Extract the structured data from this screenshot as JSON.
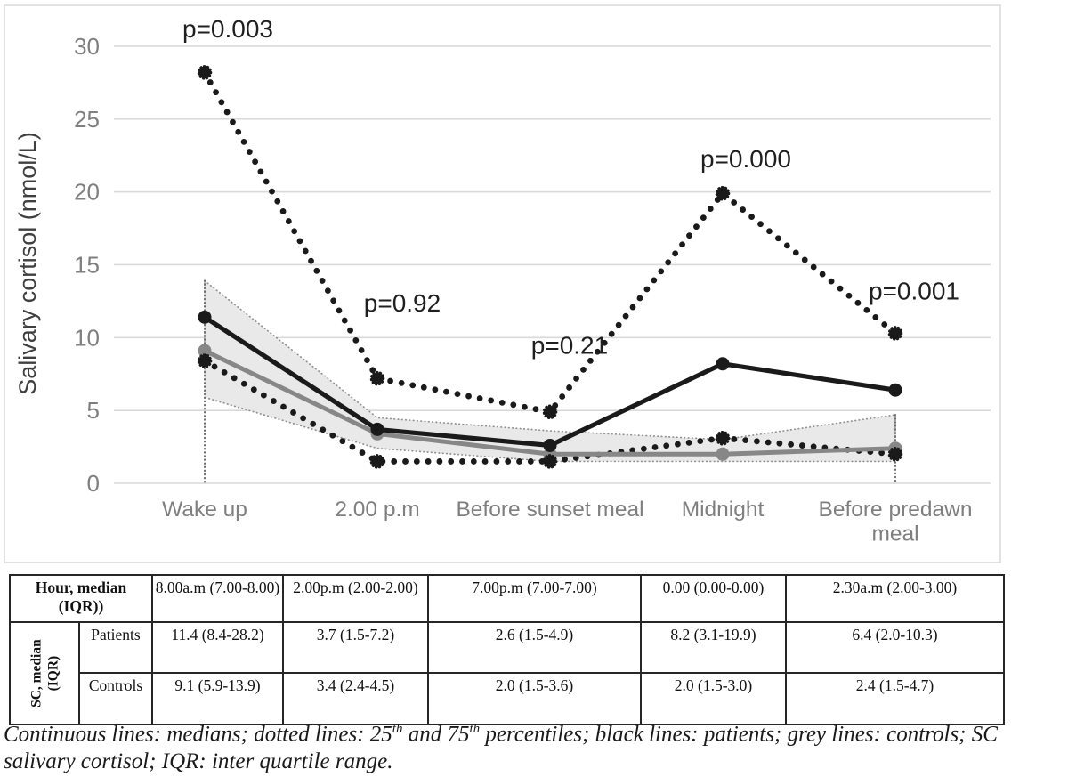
{
  "chart_data": {
    "type": "line",
    "title": "",
    "ylabel": "Salivary cortisol (nmol/L)",
    "xlabel": "",
    "grid": true,
    "legend": "none",
    "ylim": [
      0,
      30
    ],
    "yticks": [
      0,
      5,
      10,
      15,
      20,
      25,
      30
    ],
    "categories": [
      "Wake up",
      "2.00 p.m",
      "Before sunset meal",
      "Midnight",
      "Before predawn meal"
    ],
    "category_label_lines": [
      [
        "Wake up"
      ],
      [
        "2.00 p.m"
      ],
      [
        "Before sunset meal"
      ],
      [
        "Midnight"
      ],
      [
        "Before predawn",
        "meal"
      ]
    ],
    "series": [
      {
        "name": "Patients median",
        "style": "solid",
        "color": "black",
        "values": [
          11.4,
          3.7,
          2.6,
          8.2,
          6.4
        ]
      },
      {
        "name": "Patients 25th percentile",
        "style": "dotted",
        "color": "black",
        "values": [
          8.4,
          1.5,
          1.5,
          3.1,
          2.0
        ]
      },
      {
        "name": "Patients 75th percentile",
        "style": "dotted",
        "color": "black",
        "values": [
          28.2,
          7.2,
          4.9,
          19.9,
          10.3
        ]
      },
      {
        "name": "Controls median",
        "style": "solid",
        "color": "grey",
        "values": [
          9.1,
          3.4,
          2.0,
          2.0,
          2.4
        ]
      },
      {
        "name": "Controls IQR band",
        "style": "band",
        "color": "grey",
        "lower": [
          5.9,
          2.4,
          1.5,
          1.5,
          1.5
        ],
        "upper": [
          13.9,
          4.5,
          3.6,
          3.0,
          4.7
        ]
      }
    ],
    "annotations": [
      {
        "text": "p=0.003",
        "category_index": 0,
        "dx": 26,
        "value": 30.6
      },
      {
        "text": "p=0.92",
        "category_index": 1,
        "dx": 28,
        "value": 11.8
      },
      {
        "text": "p=0.21",
        "category_index": 2,
        "dx": 22,
        "value": 8.9
      },
      {
        "text": "p=0.000",
        "category_index": 3,
        "dx": 26,
        "value": 21.7
      },
      {
        "text": "p=0.001",
        "category_index": 4,
        "dx": 21,
        "value": 12.6
      }
    ],
    "colors": {
      "patients": "#1a1a1a",
      "controls": "#878787",
      "band_fill": "#e9e9e9",
      "band_edge": "#8f8f8f",
      "dropline": "#6b6b6b",
      "grid": "#d9d9d9",
      "tick_text": "#7f7f7f",
      "axis_title_text": "#3f3f3f",
      "annotation_text": "#1f1f1f",
      "frame": "#e2e2e2"
    }
  },
  "table": {
    "corner_label": "Hour, median (IQR))",
    "hours": [
      "8.00a.m (7.00-8.00)",
      "2.00p.m (2.00-2.00)",
      "7.00p.m (7.00-7.00)",
      "0.00 (0.00-0.00)",
      "2.30a.m (2.00-3.00)"
    ],
    "group_label": "SC, median (IQR)",
    "group_label_lines": [
      "SC, median",
      "(IQR)"
    ],
    "rows": [
      {
        "label": "Patients",
        "values": [
          "11.4 (8.4-28.2)",
          "3.7 (1.5-7.2)",
          "2.6 (1.5-4.9)",
          "8.2 (3.1-19.9)",
          "6.4 (2.0-10.3)"
        ]
      },
      {
        "label": "Controls",
        "values": [
          "9.1 (5.9-13.9)",
          "3.4 (2.4-4.5)",
          "2.0 (1.5-3.6)",
          "2.0 (1.5-3.0)",
          "2.4 (1.5-4.7)"
        ]
      }
    ]
  },
  "caption": {
    "line1_a": "Continuous lines: medians; dotted lines: 25",
    "sup1": "th",
    "line1_b": " and 75",
    "sup2": "th",
    "line1_c": " percentiles; black lines: patients; grey lines: controls; SC",
    "line2": "salivary cortisol; IQR: inter quartile range."
  }
}
